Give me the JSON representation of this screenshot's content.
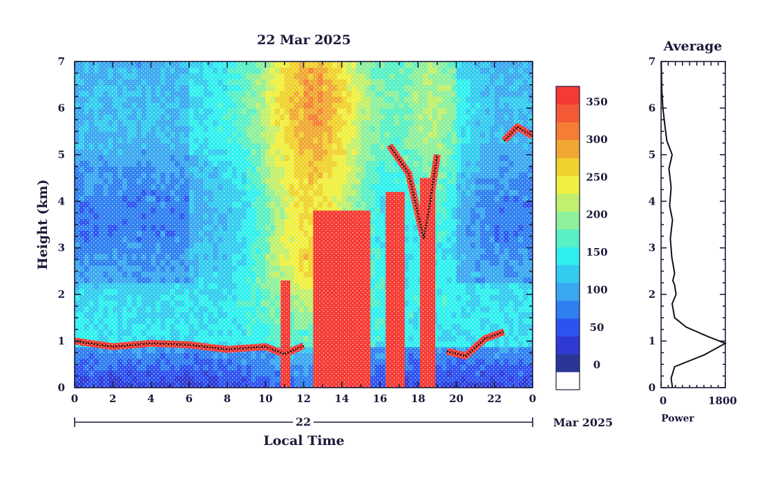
{
  "chart_data": [
    {
      "type": "heatmap",
      "title": "22 Mar 2025",
      "xlabel": "Local Time",
      "ylabel": "Height (km)",
      "date_row": {
        "day": "22",
        "month_year": "Mar 2025"
      },
      "x_ticks": [
        "0",
        "2",
        "4",
        "6",
        "8",
        "10",
        "12",
        "14",
        "16",
        "18",
        "20",
        "22",
        "0"
      ],
      "y_ticks": [
        "0",
        "1",
        "2",
        "3",
        "4",
        "5",
        "6",
        "7"
      ],
      "xlim": [
        0,
        24
      ],
      "ylim": [
        0,
        7
      ],
      "grid": false,
      "colorbar": {
        "ticks": [
          "0",
          "50",
          "100",
          "150",
          "200",
          "250",
          "300",
          "350"
        ],
        "range": [
          0,
          380
        ],
        "colors": [
          "#ffffff",
          "#2a3596",
          "#2e3ad2",
          "#2d52f0",
          "#2f7ff0",
          "#3aa8f0",
          "#33ccef",
          "#2ff0ee",
          "#58f0c4",
          "#8ef09a",
          "#c2f06c",
          "#f0f040",
          "#f0d22e",
          "#f0a832",
          "#f57e33",
          "#f45a36",
          "#f53a33"
        ]
      },
      "layers": {
        "low_cloud_base_km": [
          {
            "t": 0,
            "h": 1.0
          },
          {
            "t": 2,
            "h": 0.88
          },
          {
            "t": 4,
            "h": 0.95
          },
          {
            "t": 6,
            "h": 0.92
          },
          {
            "t": 8,
            "h": 0.82
          },
          {
            "t": 10,
            "h": 0.88
          },
          {
            "t": 11,
            "h": 0.72
          },
          {
            "t": 12,
            "h": 0.9
          },
          {
            "t": 19.5,
            "h": 0.78
          },
          {
            "t": 20.5,
            "h": 0.68
          },
          {
            "t": 21.5,
            "h": 1.05
          },
          {
            "t": 22.5,
            "h": 1.2
          }
        ],
        "high_cloud_km": [
          {
            "t": 16.5,
            "h": 5.2
          },
          {
            "t": 17.5,
            "h": 4.6
          },
          {
            "t": 18.3,
            "h": 3.2
          },
          {
            "t": 18.6,
            "h": 3.9
          },
          {
            "t": 19,
            "h": 5.0
          },
          {
            "t": 22.5,
            "h": 5.3
          },
          {
            "t": 23.2,
            "h": 5.6
          },
          {
            "t": 24,
            "h": 5.4
          }
        ],
        "precip_shafts": [
          {
            "t0": 12.5,
            "t1": 15.5,
            "top_km": 3.8
          },
          {
            "t0": 16.3,
            "t1": 17.3,
            "top_km": 4.2
          },
          {
            "t0": 18.1,
            "t1": 18.9,
            "top_km": 4.5
          },
          {
            "t0": 10.8,
            "t1": 11.3,
            "top_km": 2.3
          }
        ]
      }
    },
    {
      "type": "line",
      "title": "Average",
      "xlabel": "Power",
      "ylabel": "",
      "x_ticks": [
        "0",
        "1800"
      ],
      "y_ticks": [
        "0",
        "1",
        "2",
        "3",
        "4",
        "5",
        "6",
        "7"
      ],
      "xlim": [
        0,
        1800
      ],
      "ylim": [
        0,
        7
      ],
      "series": [
        {
          "x": [
            320,
            280,
            380,
            1200,
            1800,
            1300,
            700,
            380,
            310,
            420,
            380,
            330,
            380,
            300,
            260,
            320,
            240,
            280,
            220,
            310,
            160,
            110,
            50,
            20,
            5
          ],
          "y": [
            0.0,
            0.2,
            0.45,
            0.7,
            0.95,
            1.1,
            1.3,
            1.5,
            1.8,
            2.0,
            2.2,
            2.3,
            2.45,
            2.8,
            3.2,
            3.6,
            3.9,
            4.3,
            4.7,
            5.0,
            5.3,
            5.6,
            6.0,
            6.4,
            7.0
          ]
        }
      ]
    }
  ]
}
